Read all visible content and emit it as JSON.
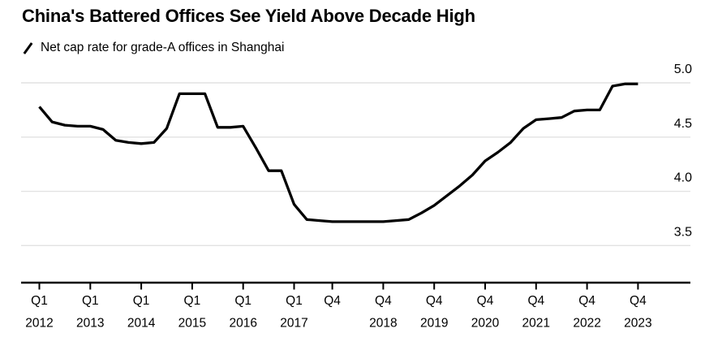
{
  "page": {
    "background": "#ffffff"
  },
  "header": {
    "title": "China's Battered Offices See Yield Above Decade High",
    "legend": {
      "marker": "diagonal-line-swatch",
      "label": "Net cap rate for grade-A offices in Shanghai"
    }
  },
  "colors": {
    "series_line": "#000000",
    "gridline": "#e2e2e2",
    "axis_line": "#000000",
    "text": "#000000",
    "background": "#ffffff"
  },
  "chart_data": {
    "type": "line",
    "title": "China's Battered Offices See Yield Above Decade High",
    "subtitle": "Net cap rate for grade-A offices in Shanghai",
    "grid": "horizontal-only",
    "y_axis_side": "right",
    "legend_position": "top-left",
    "x_unit": "quarter",
    "x_range": [
      "Q1 2012",
      "Q4 2023"
    ],
    "ylim": [
      3.16,
      5.05
    ],
    "y_ticks": [
      5.0,
      4.5,
      4.0,
      3.5
    ],
    "y_tick_labels": [
      "5.0",
      "4.5",
      "4.0",
      "3.5"
    ],
    "x_ticks": [
      {
        "label": "Q1",
        "year": "2012",
        "quarter_index": 0
      },
      {
        "label": "Q1",
        "year": "2013",
        "quarter_index": 4
      },
      {
        "label": "Q1",
        "year": "2014",
        "quarter_index": 8
      },
      {
        "label": "Q1",
        "year": "2015",
        "quarter_index": 12
      },
      {
        "label": "Q1",
        "year": "2016",
        "quarter_index": 16
      },
      {
        "label": "Q1",
        "year": "2017",
        "quarter_index": 20
      },
      {
        "label": "Q4",
        "year": "",
        "quarter_index": 23
      },
      {
        "label": "Q4",
        "year": "2018",
        "quarter_index": 27
      },
      {
        "label": "Q4",
        "year": "2019",
        "quarter_index": 31
      },
      {
        "label": "Q4",
        "year": "2020",
        "quarter_index": 35
      },
      {
        "label": "Q4",
        "year": "2021",
        "quarter_index": 39
      },
      {
        "label": "Q4",
        "year": "2022",
        "quarter_index": 43
      },
      {
        "label": "Q4",
        "year": "2023",
        "quarter_index": 47
      }
    ],
    "series": [
      {
        "name": "Net cap rate for grade-A offices in Shanghai",
        "color": "#000000",
        "x": [
          "2012Q1",
          "2012Q2",
          "2012Q3",
          "2012Q4",
          "2013Q1",
          "2013Q2",
          "2013Q3",
          "2013Q4",
          "2014Q1",
          "2014Q2",
          "2014Q3",
          "2014Q4",
          "2015Q1",
          "2015Q2",
          "2015Q3",
          "2015Q4",
          "2016Q1",
          "2016Q2",
          "2016Q3",
          "2016Q4",
          "2017Q1",
          "2017Q2",
          "2017Q3",
          "2017Q4",
          "2018Q1",
          "2018Q2",
          "2018Q3",
          "2018Q4",
          "2019Q1",
          "2019Q2",
          "2019Q3",
          "2019Q4",
          "2020Q1",
          "2020Q2",
          "2020Q3",
          "2020Q4",
          "2021Q1",
          "2021Q2",
          "2021Q3",
          "2021Q4",
          "2022Q1",
          "2022Q2",
          "2022Q3",
          "2022Q4",
          "2023Q1",
          "2023Q2",
          "2023Q3",
          "2023Q4"
        ],
        "values": [
          4.78,
          4.64,
          4.61,
          4.6,
          4.6,
          4.57,
          4.47,
          4.45,
          4.44,
          4.45,
          4.58,
          4.9,
          4.9,
          4.9,
          4.59,
          4.59,
          4.6,
          4.4,
          4.19,
          4.19,
          3.88,
          3.74,
          3.73,
          3.72,
          3.72,
          3.72,
          3.72,
          3.72,
          3.73,
          3.74,
          3.8,
          3.87,
          3.96,
          4.05,
          4.15,
          4.28,
          4.36,
          4.45,
          4.58,
          4.66,
          4.67,
          4.68,
          4.74,
          4.75,
          4.75,
          4.97,
          4.99,
          4.99
        ]
      }
    ]
  }
}
